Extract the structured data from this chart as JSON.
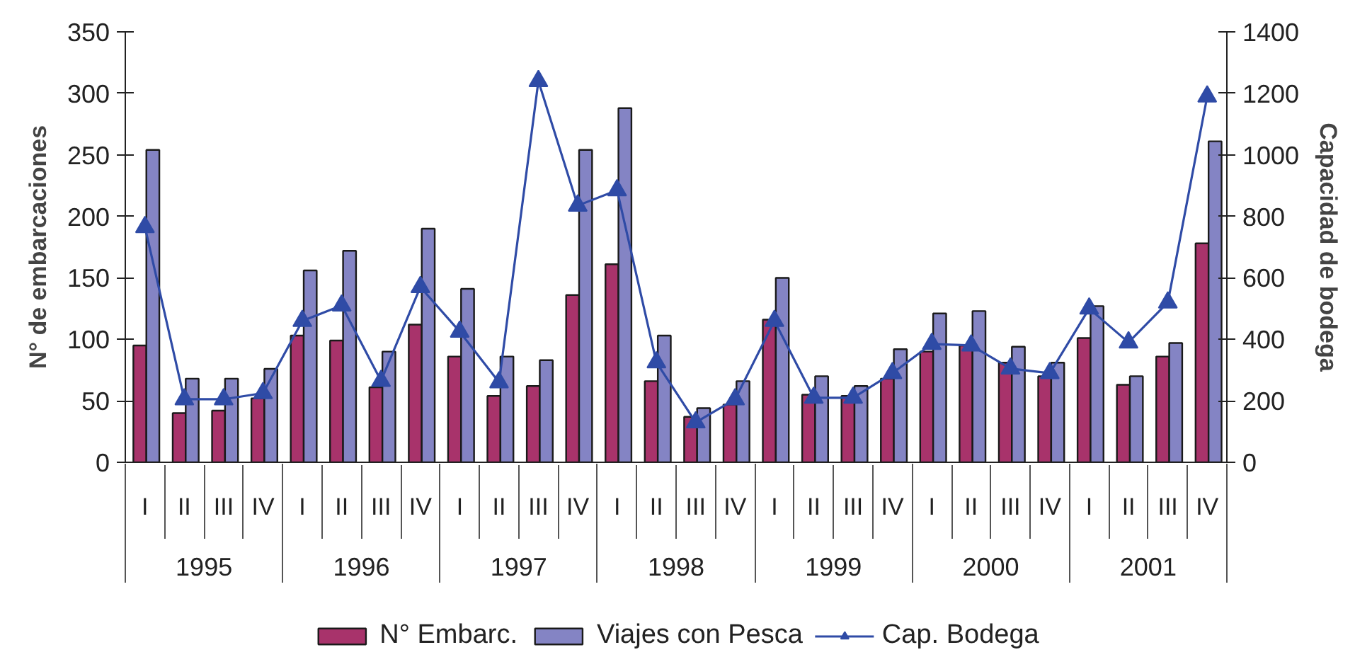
{
  "chart_data": {
    "type": "bar",
    "categories": [
      "I",
      "II",
      "III",
      "IV",
      "I",
      "II",
      "III",
      "IV",
      "I",
      "II",
      "III",
      "IV",
      "I",
      "II",
      "III",
      "IV",
      "I",
      "II",
      "III",
      "IV",
      "I",
      "II",
      "III",
      "IV",
      "I",
      "II",
      "III",
      "IV"
    ],
    "annotations": [
      "1995",
      "1996",
      "1997",
      "1998",
      "1999",
      "2000",
      "2001"
    ],
    "series": [
      {
        "name": "N° Embarc.",
        "color": "#a8336b",
        "values": [
          95,
          40,
          42,
          52,
          103,
          99,
          61,
          112,
          86,
          54,
          62,
          136,
          161,
          66,
          37,
          47,
          116,
          55,
          54,
          68,
          90,
          95,
          81,
          70,
          101,
          63,
          86,
          178
        ]
      },
      {
        "name": "Viajes con Pesca",
        "color": "#8484c4",
        "values": [
          254,
          68,
          68,
          76,
          156,
          172,
          90,
          190,
          141,
          86,
          83,
          254,
          288,
          103,
          44,
          66,
          150,
          70,
          62,
          92,
          121,
          123,
          94,
          81,
          127,
          70,
          97,
          261
        ]
      },
      {
        "name": "Cap. Bodega",
        "type": "line",
        "axis": "y2",
        "color": "#2f4ba6",
        "values": [
          765,
          205,
          205,
          225,
          460,
          510,
          265,
          570,
          425,
          260,
          1240,
          835,
          885,
          325,
          130,
          205,
          460,
          210,
          210,
          290,
          385,
          380,
          305,
          290,
          500,
          390,
          520,
          1190
        ]
      }
    ],
    "ylabel": "N° de embarcaciones",
    "y2label": "Capacidad de bodega",
    "ylim": [
      0,
      350
    ],
    "yticks": [
      0,
      50,
      100,
      150,
      200,
      250,
      300,
      350
    ],
    "y2lim": [
      0,
      1400
    ],
    "y2ticks": [
      0,
      200,
      400,
      600,
      800,
      1000,
      1200,
      1400
    ],
    "marker": "triangle",
    "legend": "bottom",
    "grid": false
  }
}
